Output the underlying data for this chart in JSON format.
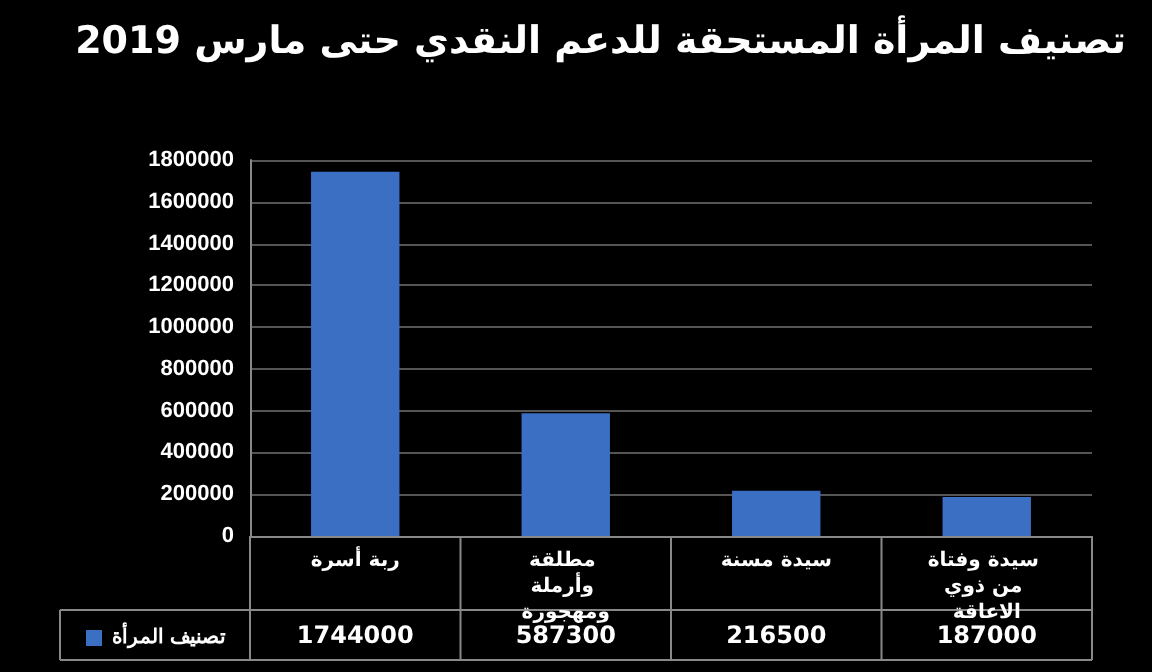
{
  "chart_data": {
    "type": "bar",
    "title": "تصنيف المرأة المستحقة للدعم النقدي حتى مارس 2019",
    "categories": [
      "ربة أسرة",
      "مطلقة وأرملة ومهجورة",
      "سيدة مسنة",
      "سيدة وفتاة من ذوي الاعاقة"
    ],
    "series": [
      {
        "name": "تصنيف المرأة",
        "color": "#3a6fc4",
        "values": [
          1744000,
          587300,
          216500,
          187000
        ]
      }
    ],
    "ylim": [
      0,
      1800000
    ],
    "yticks": [
      0,
      200000,
      400000,
      600000,
      800000,
      1000000,
      1200000,
      1400000,
      1600000,
      1800000
    ],
    "grid": "y",
    "legend": "bottom left",
    "data_labels": true
  }
}
